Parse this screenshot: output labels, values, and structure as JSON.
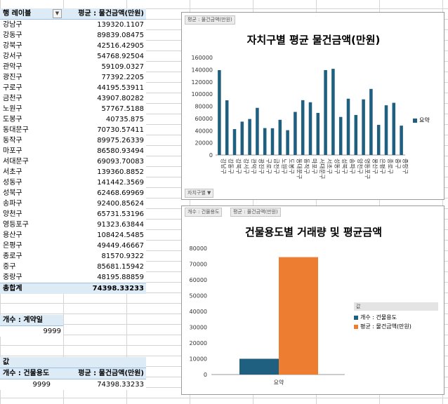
{
  "pivot": {
    "header": {
      "row_label": "행 레이블",
      "value_label": "평균 : 물건금액(만원)"
    },
    "rows": [
      {
        "label": "강남구",
        "value": "139320.1107"
      },
      {
        "label": "강동구",
        "value": "89839.08475"
      },
      {
        "label": "강북구",
        "value": "42516.42905"
      },
      {
        "label": "강서구",
        "value": "54768.92504"
      },
      {
        "label": "관악구",
        "value": "59109.0327"
      },
      {
        "label": "광진구",
        "value": "77392.2205"
      },
      {
        "label": "구로구",
        "value": "44195.53911"
      },
      {
        "label": "금천구",
        "value": "43907.80282"
      },
      {
        "label": "노원구",
        "value": "57767.5188"
      },
      {
        "label": "도봉구",
        "value": "40735.875"
      },
      {
        "label": "동대문구",
        "value": "70730.57411"
      },
      {
        "label": "동작구",
        "value": "89975.26339"
      },
      {
        "label": "마포구",
        "value": "86580.93494"
      },
      {
        "label": "서대문구",
        "value": "69093.70083"
      },
      {
        "label": "서초구",
        "value": "139360.8852"
      },
      {
        "label": "성동구",
        "value": "141442.3569"
      },
      {
        "label": "성북구",
        "value": "62468.69969"
      },
      {
        "label": "송파구",
        "value": "92400.85624"
      },
      {
        "label": "양천구",
        "value": "65731.53196"
      },
      {
        "label": "영등포구",
        "value": "91323.63844"
      },
      {
        "label": "용산구",
        "value": "108424.5485"
      },
      {
        "label": "은평구",
        "value": "49449.46667"
      },
      {
        "label": "종로구",
        "value": "81570.9322"
      },
      {
        "label": "중구",
        "value": "85681.15942"
      },
      {
        "label": "중랑구",
        "value": "48195.88859"
      }
    ],
    "total": {
      "label": "총합계",
      "value": "74398.33233"
    }
  },
  "count_pivot": {
    "header": "개수 : 계약일",
    "value": "9999"
  },
  "values_pivot": {
    "caption": "값",
    "col1": "개수 : 건물용도",
    "col2": "평균 : 물건금액(만원)",
    "v1": "9999",
    "v2": "74398.33233"
  },
  "chart1": {
    "filter_button": "평균 : 물건금액(만원)",
    "axis_button": "자치구별 ▼",
    "title": "자치구별 평균 물건금액(만원)",
    "legend": "요약",
    "color": "#1f5f7f"
  },
  "chart2": {
    "filter_buttons": [
      "개수 : 건물용도",
      "평균 : 물건금액(만원)"
    ],
    "title": "건물용도별 거래량 및 평균금액",
    "legend_header": "값",
    "legend_items": [
      "개수 : 건물용도",
      "평균 : 물건금액(만원)"
    ],
    "colors": [
      "#1f5f7f",
      "#ed7d31"
    ],
    "x_label": "요약"
  },
  "chart_data": [
    {
      "type": "bar",
      "title": "자치구별 평균 물건금액(만원)",
      "categories": [
        "강남구",
        "강동구",
        "강북구",
        "강서구",
        "관악구",
        "광진구",
        "구로구",
        "금천구",
        "노원구",
        "도봉구",
        "동대문구",
        "동작구",
        "마포구",
        "서대문구",
        "서초구",
        "성동구",
        "성북구",
        "송파구",
        "양천구",
        "영등포구",
        "용산구",
        "은평구",
        "종로구",
        "중구",
        "중랑구"
      ],
      "series": [
        {
          "name": "요약",
          "values": [
            139320.11,
            89839.08,
            42516.43,
            54768.93,
            59109.03,
            77392.22,
            44195.54,
            43907.8,
            57767.52,
            40735.88,
            70730.57,
            89975.26,
            86580.93,
            69093.7,
            139360.89,
            141442.36,
            62468.7,
            92400.86,
            65731.53,
            91323.64,
            108424.55,
            49449.47,
            81570.93,
            85681.16,
            48195.89
          ]
        }
      ],
      "ylim": [
        0,
        160000
      ],
      "yticks": [
        "0",
        "20000",
        "40000",
        "60000",
        "80000",
        "100000",
        "120000",
        "140000",
        "160000"
      ],
      "legend": "right"
    },
    {
      "type": "bar",
      "title": "건물용도별 거래량 및 평균금액",
      "categories": [
        "요약"
      ],
      "series": [
        {
          "name": "개수 : 건물용도",
          "values": [
            9999
          ]
        },
        {
          "name": "평균 : 물건금액(만원)",
          "values": [
            74398.33
          ]
        }
      ],
      "ylim": [
        0,
        80000
      ],
      "yticks": [
        "0",
        "10000",
        "20000",
        "30000",
        "40000",
        "50000",
        "60000",
        "70000",
        "80000"
      ],
      "legend": "right"
    }
  ]
}
